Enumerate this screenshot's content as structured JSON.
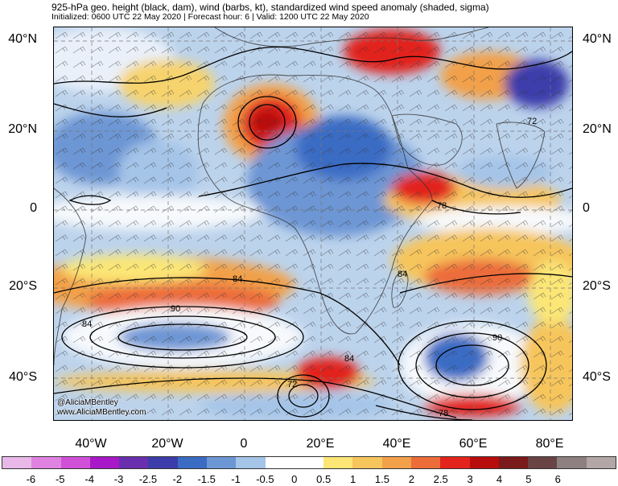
{
  "header": {
    "title": "925-hPa geo. height (black, dam), wind (barbs, kt), standardized wind speed anomaly (shaded, sigma)",
    "subtitle": "Initialized: 0600 UTC 22 May 2020 | Forecast hour: 6 | Valid: 1200 UTC 22 May 2020"
  },
  "axes": {
    "lat_labels": [
      "40°N",
      "20°N",
      "0",
      "20°S",
      "40°S"
    ],
    "lon_labels": [
      "40°W",
      "20°W",
      "0",
      "20°E",
      "40°E",
      "60°E",
      "80°E"
    ]
  },
  "contours": {
    "labels": [
      "72",
      "78",
      "84",
      "84",
      "84",
      "84",
      "90",
      "90",
      "78",
      "72"
    ]
  },
  "credit": {
    "handle": "@AliciaMBentley",
    "url": "www.AliciaMBentley.com"
  },
  "colorbar": {
    "colors": [
      "#e8b8e8",
      "#e082e0",
      "#d050d8",
      "#a818c8",
      "#6a2fae",
      "#3d3cab",
      "#3a6cc4",
      "#6d96d4",
      "#a4c4e8",
      "#ffffff",
      "#ffffff",
      "#fbe676",
      "#f6c55c",
      "#f2a04a",
      "#ec6c3a",
      "#e2241c",
      "#b80d0d",
      "#7a1a1a",
      "#6a4444",
      "#8e8080",
      "#b2a6a6"
    ],
    "labels": [
      "-6",
      "-5",
      "-4",
      "-3",
      "-2.5",
      "-2",
      "-1.5",
      "-1",
      "-0.5",
      "0",
      "0.5",
      "1",
      "1.5",
      "2",
      "2.5",
      "3",
      "4",
      "5",
      "6"
    ]
  }
}
